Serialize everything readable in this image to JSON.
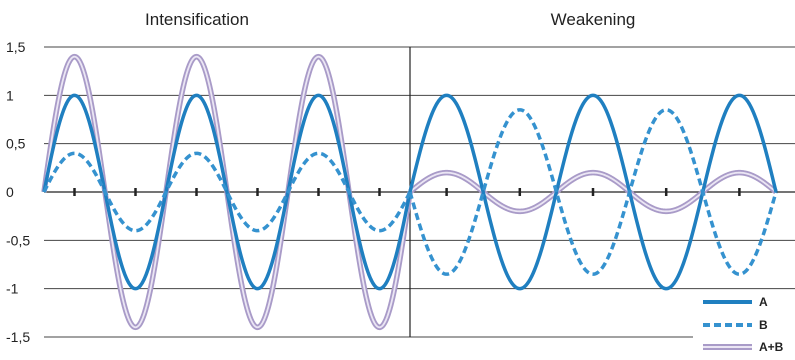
{
  "chart_data": [
    {
      "type": "line",
      "title": "Intensification",
      "xlabel": "",
      "ylabel": "",
      "ylim": [
        -1.5,
        1.5
      ],
      "yticks": [
        "1,5",
        "1",
        "0,5",
        "0",
        "-0,5",
        "-1",
        "-1,5"
      ],
      "grid": "horizontal",
      "periods": 3,
      "series": [
        {
          "name": "A",
          "amplitude": 1.0,
          "phase": 0,
          "style": "solid",
          "color": "#1f7fc0"
        },
        {
          "name": "B",
          "amplitude": 0.4,
          "phase": 0,
          "style": "dashed",
          "color": "#3592cf"
        },
        {
          "name": "A+B",
          "amplitude": 1.4,
          "phase": 0,
          "style": "double",
          "color": "#a99bc8"
        }
      ]
    },
    {
      "type": "line",
      "title": "Weakening",
      "xlabel": "",
      "ylabel": "",
      "ylim": [
        -1.5,
        1.5
      ],
      "grid": "horizontal",
      "periods": 2.5,
      "series": [
        {
          "name": "A",
          "amplitude": 1.0,
          "phase": 0,
          "style": "solid",
          "color": "#1f7fc0"
        },
        {
          "name": "B",
          "amplitude": 0.85,
          "phase": 180,
          "style": "dashed",
          "color": "#3592cf"
        },
        {
          "name": "A+B",
          "amplitude": 0.2,
          "phase": 0,
          "style": "double",
          "color": "#a99bc8"
        }
      ]
    }
  ],
  "legend": {
    "position": "bottom-right",
    "items": [
      {
        "label": "A",
        "style": "solid"
      },
      {
        "label": "B",
        "style": "dashed"
      },
      {
        "label": "A+B",
        "style": "double"
      }
    ]
  }
}
